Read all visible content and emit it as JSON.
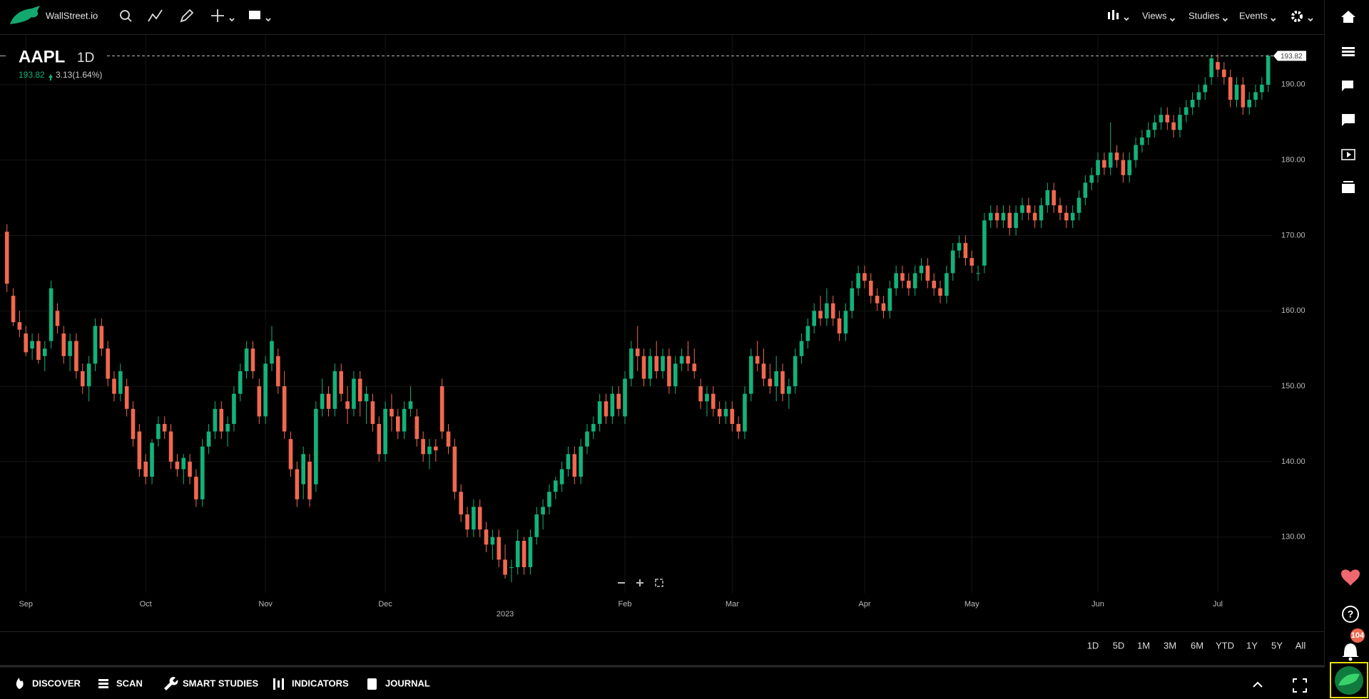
{
  "toolbar": {
    "brand": "WallStreet.io",
    "menus": [
      "Views",
      "Studies",
      "Events"
    ]
  },
  "chart_data": {
    "type": "candlestick",
    "symbol": "AAPL",
    "interval": "1D",
    "last_price": 193.82,
    "last_price_label": "193.82",
    "change": "3.13(1.64%)",
    "up_color": "#12b27a",
    "down_color": "#f0684f",
    "grid": true,
    "xlim": [
      -1.1,
      200.6
    ],
    "xticks": [
      {
        "value": 3,
        "label": "Sep"
      },
      {
        "value": 22,
        "label": "Oct"
      },
      {
        "value": 41,
        "label": "Nov"
      },
      {
        "value": 60,
        "label": "Dec"
      },
      {
        "value": 98,
        "label": "Feb"
      },
      {
        "value": 115,
        "label": "Mar"
      },
      {
        "value": 136,
        "label": "Apr"
      },
      {
        "value": 153,
        "label": "May"
      },
      {
        "value": 173,
        "label": "Jun"
      },
      {
        "value": 192,
        "label": "Jul"
      }
    ],
    "year_ticks": [
      {
        "value": 79,
        "label": "2023"
      }
    ],
    "ylim": [
      122.6,
      196.6
    ],
    "yticks": [
      {
        "value": 130,
        "label": "130.00"
      },
      {
        "value": 140,
        "label": "140.00"
      },
      {
        "value": 150,
        "label": "150.00"
      },
      {
        "value": 160,
        "label": "160.00"
      },
      {
        "value": 170,
        "label": "170.00"
      },
      {
        "value": 180,
        "label": "180.00"
      },
      {
        "value": 190,
        "label": "190.00"
      }
    ],
    "candles": [
      [
        170.5,
        171.5,
        162.5,
        163.6
      ],
      [
        162,
        163,
        158,
        158.5
      ],
      [
        158.5,
        160,
        156.5,
        157.5
      ],
      [
        157,
        158,
        154,
        154.5
      ],
      [
        155,
        157,
        153.5,
        156
      ],
      [
        156,
        157,
        153,
        153.5
      ],
      [
        154,
        156,
        152,
        155
      ],
      [
        156,
        164,
        155,
        163
      ],
      [
        160,
        161,
        157,
        158
      ],
      [
        157,
        158,
        153,
        154
      ],
      [
        154,
        157,
        152,
        156
      ],
      [
        156,
        157,
        151,
        152
      ],
      [
        152,
        153,
        149,
        150
      ],
      [
        150,
        154,
        148,
        153
      ],
      [
        153,
        159,
        152,
        158
      ],
      [
        158,
        159,
        154,
        155
      ],
      [
        155,
        156,
        150,
        151
      ],
      [
        151,
        152,
        148,
        149
      ],
      [
        149,
        153,
        148,
        152
      ],
      [
        150,
        151,
        146,
        147
      ],
      [
        147,
        148,
        142,
        143
      ],
      [
        144,
        145,
        138,
        139
      ],
      [
        140,
        141,
        137,
        138
      ],
      [
        138,
        143,
        137,
        142.5
      ],
      [
        143,
        146,
        142,
        145
      ],
      [
        145,
        146,
        143,
        144
      ],
      [
        144,
        145,
        139,
        140
      ],
      [
        140,
        141,
        138,
        139
      ],
      [
        139,
        141,
        137,
        140.5
      ],
      [
        140,
        141,
        137,
        138
      ],
      [
        138,
        139,
        134,
        135
      ],
      [
        135,
        143,
        134,
        142
      ],
      [
        142,
        145,
        141,
        144
      ],
      [
        144,
        148,
        143,
        147
      ],
      [
        147,
        148,
        143,
        144
      ],
      [
        144,
        146,
        142,
        145
      ],
      [
        145,
        150,
        144,
        149
      ],
      [
        149,
        153,
        148,
        152
      ],
      [
        152,
        156,
        151,
        155
      ],
      [
        155,
        156,
        151,
        152
      ],
      [
        150,
        151,
        145,
        146
      ],
      [
        146,
        154,
        145,
        153
      ],
      [
        153,
        158,
        152,
        156
      ],
      [
        154,
        155,
        149,
        150
      ],
      [
        150,
        152,
        143,
        144
      ],
      [
        143,
        144,
        138,
        139
      ],
      [
        139,
        140,
        134,
        135
      ],
      [
        137,
        142,
        135,
        141
      ],
      [
        140,
        141,
        134,
        135
      ],
      [
        137,
        148,
        136,
        147
      ],
      [
        147,
        151,
        146,
        149
      ],
      [
        149,
        150,
        146,
        147
      ],
      [
        147,
        153,
        146,
        152
      ],
      [
        152,
        153,
        148,
        149
      ],
      [
        148,
        150,
        145,
        147
      ],
      [
        147,
        152,
        146,
        151
      ],
      [
        151,
        152,
        146,
        148
      ],
      [
        148,
        150,
        145,
        149
      ],
      [
        148,
        149,
        144,
        145
      ],
      [
        145,
        146,
        140,
        141
      ],
      [
        141,
        148,
        140,
        147
      ],
      [
        147,
        149,
        144,
        146
      ],
      [
        146,
        147,
        143,
        144
      ],
      [
        144,
        148,
        143,
        147
      ],
      [
        147,
        150,
        146,
        148
      ],
      [
        146,
        147,
        142,
        143
      ],
      [
        143,
        144,
        140,
        141
      ],
      [
        141,
        143,
        139,
        142
      ],
      [
        142,
        143,
        140,
        141.5
      ],
      [
        150,
        151,
        143,
        144
      ],
      [
        144,
        145,
        141,
        142
      ],
      [
        142,
        143,
        135,
        136
      ],
      [
        136,
        137,
        132,
        133
      ],
      [
        133,
        134,
        130,
        131
      ],
      [
        131,
        135,
        130,
        134
      ],
      [
        134,
        135,
        130,
        131
      ],
      [
        131,
        132,
        128,
        129
      ],
      [
        129,
        131,
        127,
        130
      ],
      [
        130,
        131,
        126,
        127
      ],
      [
        127,
        129,
        124.5,
        125
      ],
      [
        126,
        127,
        124,
        126
      ],
      [
        126,
        131,
        125,
        129.5
      ],
      [
        129.5,
        130,
        125,
        126
      ],
      [
        126,
        131,
        125,
        130
      ],
      [
        130,
        134,
        129,
        133
      ],
      [
        133,
        135,
        131,
        134
      ],
      [
        134,
        137,
        133,
        136
      ],
      [
        136,
        138,
        135,
        137.5
      ],
      [
        137,
        140,
        136,
        139
      ],
      [
        139,
        142,
        138,
        141
      ],
      [
        141,
        142,
        137,
        138
      ],
      [
        138,
        143,
        137,
        142
      ],
      [
        142,
        145,
        141,
        144
      ],
      [
        144,
        146,
        143,
        145
      ],
      [
        145,
        149,
        144,
        148
      ],
      [
        148,
        149,
        145,
        146
      ],
      [
        146,
        150,
        145,
        149
      ],
      [
        149,
        150,
        146,
        147
      ],
      [
        146,
        152,
        145,
        151
      ],
      [
        151,
        156,
        150,
        155
      ],
      [
        155,
        158,
        152,
        154
      ],
      [
        154,
        155,
        150,
        151
      ],
      [
        151,
        155,
        150,
        154
      ],
      [
        154,
        156,
        151,
        152
      ],
      [
        152,
        155,
        151,
        154
      ],
      [
        154,
        155,
        149,
        150
      ],
      [
        150,
        154,
        149,
        153
      ],
      [
        153,
        155,
        152,
        154
      ],
      [
        154,
        156,
        152,
        153
      ],
      [
        153,
        155,
        151,
        152
      ],
      [
        150,
        151,
        147,
        148
      ],
      [
        148,
        150,
        146,
        149
      ],
      [
        149,
        150,
        146,
        147
      ],
      [
        147,
        148,
        145,
        146
      ],
      [
        146,
        148,
        145,
        147
      ],
      [
        147,
        148,
        144,
        145
      ],
      [
        145,
        146,
        143,
        144
      ],
      [
        144,
        150,
        143,
        149
      ],
      [
        149,
        155,
        148,
        154
      ],
      [
        154,
        156,
        152,
        153
      ],
      [
        153,
        155,
        150,
        151
      ],
      [
        151,
        153,
        149,
        150
      ],
      [
        150,
        154,
        148,
        152
      ],
      [
        152,
        153,
        148,
        149
      ],
      [
        149,
        151,
        147,
        150
      ],
      [
        150,
        155,
        149,
        154
      ],
      [
        154,
        157,
        153,
        156
      ],
      [
        156,
        159,
        155,
        158
      ],
      [
        158,
        161,
        157,
        160
      ],
      [
        160,
        162,
        158,
        159
      ],
      [
        159,
        163,
        158,
        161
      ],
      [
        161,
        162,
        158,
        159
      ],
      [
        159,
        160,
        156,
        157
      ],
      [
        157,
        161,
        156,
        160
      ],
      [
        160,
        164,
        159,
        163
      ],
      [
        163,
        166,
        162,
        165
      ],
      [
        165,
        166,
        163,
        164
      ],
      [
        164,
        165,
        161,
        162
      ],
      [
        162,
        163,
        160,
        161
      ],
      [
        161,
        162,
        159,
        160
      ],
      [
        160,
        164,
        159,
        163
      ],
      [
        163,
        166,
        162,
        165
      ],
      [
        165,
        166,
        163,
        164
      ],
      [
        164,
        165,
        162,
        163
      ],
      [
        163,
        166,
        162,
        165
      ],
      [
        165,
        167,
        164,
        166
      ],
      [
        166,
        167,
        163,
        164
      ],
      [
        164,
        165,
        162,
        163
      ],
      [
        163,
        164,
        161,
        162
      ],
      [
        162,
        166,
        161,
        165
      ],
      [
        165,
        169,
        164,
        168
      ],
      [
        168,
        170,
        167,
        169
      ],
      [
        169,
        170,
        166,
        167
      ],
      [
        167,
        168,
        165,
        166
      ],
      [
        165,
        166,
        164,
        165
      ],
      [
        166,
        173,
        165,
        172
      ],
      [
        172,
        174,
        171,
        173
      ],
      [
        173,
        174,
        171,
        172
      ],
      [
        172,
        174,
        171,
        173
      ],
      [
        173,
        174,
        170,
        171
      ],
      [
        171,
        174,
        170,
        173
      ],
      [
        173,
        175,
        172,
        174
      ],
      [
        174,
        175,
        172,
        173
      ],
      [
        173,
        174,
        171,
        172
      ],
      [
        172,
        175,
        171,
        174
      ],
      [
        174,
        177,
        173,
        176
      ],
      [
        176,
        177,
        173,
        174
      ],
      [
        174,
        175,
        172,
        173
      ],
      [
        173,
        174,
        171,
        172
      ],
      [
        172,
        174,
        171,
        173
      ],
      [
        173,
        176,
        172,
        175
      ],
      [
        175,
        178,
        174,
        177
      ],
      [
        177,
        179,
        176,
        178
      ],
      [
        178,
        181,
        177,
        180
      ],
      [
        180,
        181,
        178,
        179
      ],
      [
        179,
        185,
        178,
        181
      ],
      [
        181,
        182,
        179,
        180
      ],
      [
        180,
        181,
        177,
        178
      ],
      [
        178,
        181,
        177,
        180
      ],
      [
        180,
        183,
        179,
        182
      ],
      [
        182,
        184,
        181,
        183
      ],
      [
        183,
        185,
        182,
        184
      ],
      [
        184,
        186,
        183,
        185
      ],
      [
        185,
        187,
        184,
        186
      ],
      [
        186,
        187,
        184,
        185
      ],
      [
        185,
        186,
        183,
        184
      ],
      [
        184,
        187,
        183,
        186
      ],
      [
        186,
        188,
        185,
        187
      ],
      [
        187,
        189,
        186,
        188
      ],
      [
        188,
        190,
        187,
        189
      ],
      [
        189,
        191,
        188,
        190
      ],
      [
        191,
        194,
        190,
        193.5
      ],
      [
        193,
        194,
        191,
        192
      ],
      [
        192,
        193,
        190,
        191
      ],
      [
        191,
        192,
        187,
        188
      ],
      [
        188,
        191,
        187,
        190
      ],
      [
        190,
        191,
        186,
        187
      ],
      [
        187,
        189,
        186,
        188
      ],
      [
        188,
        190,
        187,
        189
      ],
      [
        189,
        191,
        188,
        190
      ],
      [
        190,
        194,
        189,
        193.82
      ]
    ]
  },
  "ranges": [
    "1D",
    "5D",
    "1M",
    "3M",
    "6M",
    "YTD",
    "1Y",
    "5Y",
    "All"
  ],
  "bottom_nav": [
    "DISCOVER",
    "SCAN",
    "SMART STUDIES",
    "INDICATORS",
    "JOURNAL"
  ],
  "notifications": "104"
}
